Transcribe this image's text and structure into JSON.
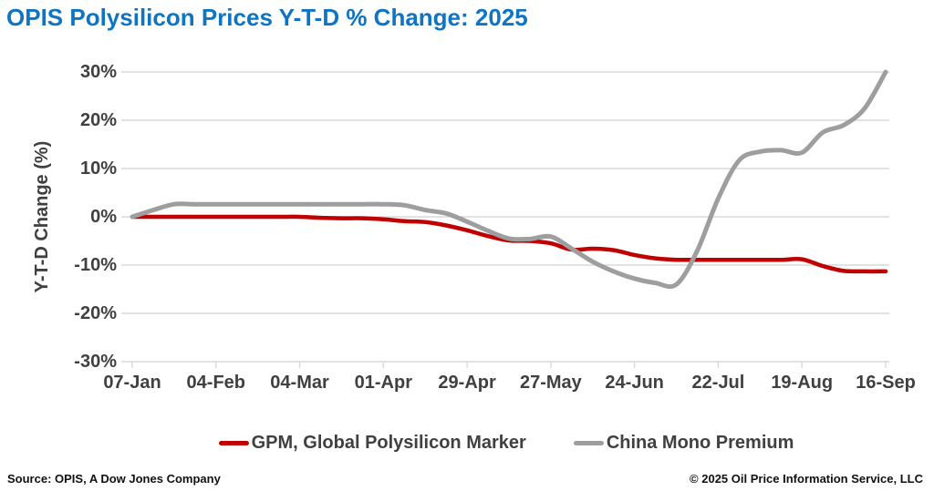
{
  "title": "OPIS Polysilicon Prices Y-T-D % Change: 2025",
  "colors": {
    "title_blue": "#0E74C4",
    "gpm_red": "#C00000",
    "china_gray": "#9E9E9E",
    "gridline": "#D9D9D9",
    "axis_text": "#404040"
  },
  "footer": {
    "source": "Source: OPIS, A Dow Jones Company",
    "copyright": "© 2025 Oil Price Information Service, LLC"
  },
  "chart_data": {
    "type": "line",
    "title": "OPIS Polysilicon Prices Y-T-D % Change: 2025",
    "xlabel": "",
    "ylabel": "Y-T-D Change (%)",
    "ylim": [
      -30,
      30
    ],
    "ytick_values": [
      30,
      20,
      10,
      0,
      -10,
      -20,
      -30
    ],
    "ytick_labels": [
      "30%",
      "20%",
      "10%",
      "0%",
      "-10%",
      "-20%",
      "-30%"
    ],
    "xtick_labels": [
      "07-Jan",
      "04-Feb",
      "04-Mar",
      "01-Apr",
      "29-Apr",
      "27-May",
      "24-Jun",
      "22-Jul",
      "19-Aug",
      "16-Sep"
    ],
    "x": [
      "07-Jan",
      "14-Jan",
      "21-Jan",
      "28-Jan",
      "04-Feb",
      "11-Feb",
      "18-Feb",
      "25-Feb",
      "04-Mar",
      "11-Mar",
      "18-Mar",
      "25-Mar",
      "01-Apr",
      "08-Apr",
      "15-Apr",
      "22-Apr",
      "29-Apr",
      "06-May",
      "13-May",
      "20-May",
      "27-May",
      "03-Jun",
      "10-Jun",
      "17-Jun",
      "24-Jun",
      "01-Jul",
      "08-Jul",
      "15-Jul",
      "22-Jul",
      "29-Jul",
      "05-Aug",
      "12-Aug",
      "19-Aug",
      "26-Aug",
      "02-Sep",
      "09-Sep",
      "16-Sep"
    ],
    "series": [
      {
        "name": "GPM, Global Polysilicon Marker",
        "color": "#C00000",
        "values": [
          0,
          0,
          0,
          0,
          0,
          0,
          0,
          0,
          0,
          -0.2,
          -0.3,
          -0.3,
          -0.5,
          -0.9,
          -1.1,
          -1.8,
          -2.8,
          -4.0,
          -4.9,
          -5.0,
          -5.5,
          -6.8,
          -6.6,
          -6.9,
          -7.9,
          -8.6,
          -8.9,
          -8.9,
          -8.9,
          -8.9,
          -8.9,
          -8.9,
          -8.8,
          -10.2,
          -11.2,
          -11.3,
          -11.3
        ]
      },
      {
        "name": "China Mono Premium",
        "color": "#9E9E9E",
        "values": [
          0,
          1.4,
          2.6,
          2.6,
          2.6,
          2.6,
          2.6,
          2.6,
          2.6,
          2.6,
          2.6,
          2.6,
          2.6,
          2.4,
          1.4,
          0.7,
          -1.0,
          -2.9,
          -4.5,
          -4.6,
          -4.1,
          -6.6,
          -9.3,
          -11.3,
          -12.8,
          -13.7,
          -14.0,
          -7.0,
          3.8,
          11.7,
          13.5,
          13.8,
          13.3,
          17.5,
          19.0,
          22.5,
          30.0
        ]
      }
    ],
    "grid": "horizontal",
    "legend_position": "bottom"
  }
}
